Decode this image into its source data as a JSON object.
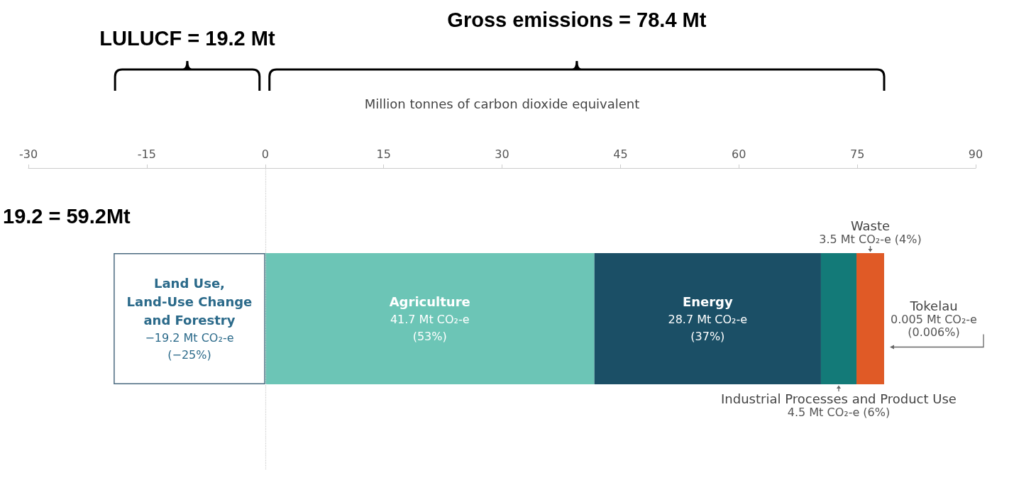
{
  "chart_data": {
    "type": "bar",
    "orientation": "horizontal",
    "stacked": true,
    "xlabel": "Million tonnes of carbon dioxide equivalent",
    "categories": [
      null
    ],
    "series": [
      {
        "name": "Land Use,\nLand-Use Change\nand Forestry",
        "color": "#ffffff",
        "values": [
          -19.2
        ],
        "value_labels": [
          "−19.2 Mt CO₂-e\n(−25%)"
        ]
      },
      {
        "name": "Agriculture",
        "color": "#6cc5b6",
        "values": [
          41.7
        ],
        "value_labels": [
          "41.7 Mt CO₂-e\n(53%)"
        ]
      },
      {
        "name": "Energy",
        "color": "#1b4f66",
        "values": [
          28.7
        ],
        "value_labels": [
          "28.7 Mt CO₂-e\n(37%)"
        ]
      },
      {
        "name": "Industrial Processes\nand Product Use",
        "color": "#137a78",
        "values": [
          4.5
        ],
        "value_labels": [
          "4.5 Mt CO₂-e (6%)"
        ]
      },
      {
        "name": "Waste",
        "color": "#e05a26",
        "values": [
          3.5
        ],
        "value_labels": [
          "3.5 Mt CO₂-e (4%)"
        ]
      },
      {
        "name": "Tokelau",
        "color": "#555555",
        "values": [
          0.005
        ],
        "value_labels": [
          "0.005 Mt CO₂-e\n(0.006%)"
        ]
      }
    ],
    "xlim": [
      -30,
      90
    ],
    "xticks": [
      -30,
      -15,
      0,
      15,
      30,
      45,
      60,
      75,
      90
    ],
    "ref_lines": [
      {
        "axis": "x",
        "value": 0,
        "color": "#cccccc",
        "line_style": "dotted"
      }
    ],
    "annotations": [
      "LULUCF = 19.2 Mt",
      "Gross emissions = 78.4 Mt",
      "19.2 = 59.2Mt"
    ]
  }
}
